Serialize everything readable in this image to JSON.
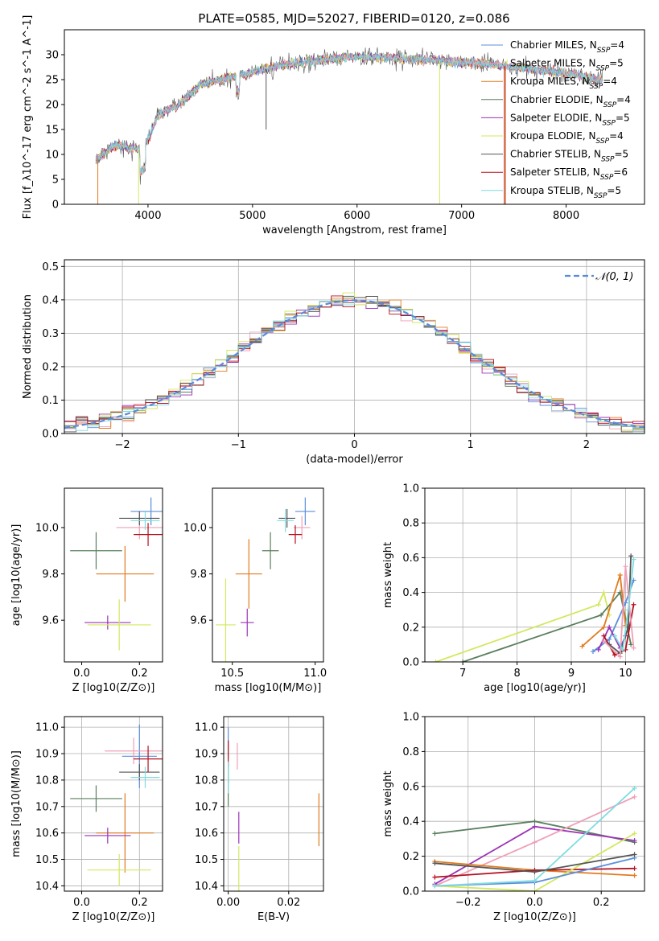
{
  "title": "PLATE=0585, MJD=52027, FIBERID=0120, z=0.086",
  "colors": {
    "Chabrier MILES": "#5b8fd9",
    "Salpeter MILES": "#ef9fb6",
    "Kroupa MILES": "#e07b1f",
    "Chabrier ELODIE": "#5a7f5e",
    "Salpeter ELODIE": "#9b33b6",
    "Kroupa ELODIE": "#d3e85f",
    "Chabrier STELIB": "#555555",
    "Salpeter STELIB": "#b4101f",
    "Kroupa STELIB": "#7fdce0"
  },
  "legend_labels": [
    "Chabrier MILES, N_SSP=4",
    "Salpeter MILES, N_SSP=5",
    "Kroupa MILES, N_SSP=4",
    "Chabrier ELODIE, N_SSP=4",
    "Salpeter ELODIE, N_SSP=5",
    "Kroupa ELODIE, N_SSP=4",
    "Chabrier STELIB, N_SSP=5",
    "Salpeter STELIB, N_SSP=6",
    "Kroupa STELIB, N_SSP=5"
  ],
  "chart_data": [
    {
      "type": "line",
      "title": "PLATE=0585, MJD=52027, FIBERID=0120, z=0.086",
      "xlabel": "wavelength [Angstrom, rest frame]",
      "ylabel": "Flux [f_λ10^-17 erg cm^-2 s^-1 A^-1]",
      "xlim": [
        3200,
        8750
      ],
      "ylim": [
        0,
        35
      ],
      "xticks": [
        4000,
        5000,
        6000,
        7000,
        8000
      ],
      "yticks": [
        0,
        5,
        10,
        15,
        20,
        25,
        30
      ],
      "spectrum_envelope": {
        "wavelength": [
          3500,
          3700,
          3900,
          4000,
          4100,
          4300,
          4500,
          4700,
          4900,
          5100,
          5300,
          5500,
          5700,
          5900,
          6100,
          6300,
          6500,
          6700,
          6900,
          7100,
          7300,
          7500,
          7700,
          7900,
          8100,
          8300
        ],
        "flux": [
          9,
          12,
          11,
          13,
          18,
          20,
          24,
          25,
          26,
          27,
          28,
          28.5,
          29,
          29.5,
          29.5,
          29.5,
          29,
          29,
          28.5,
          28.5,
          28,
          27.5,
          27,
          26.5,
          26,
          25
        ]
      },
      "grid": false,
      "legend_position": "upper right"
    },
    {
      "type": "histogram",
      "xlabel": "(data-model)/error",
      "ylabel": "Normed distribution",
      "xlim": [
        -2.5,
        2.5
      ],
      "ylim": [
        0,
        0.52
      ],
      "xticks": [
        -2,
        -1,
        0,
        1,
        2
      ],
      "yticks": [
        0.0,
        0.1,
        0.2,
        0.3,
        0.4,
        0.5
      ],
      "reference": "N(0,1)",
      "legend_label": "$\\mathcal{N}(0,1)$",
      "grid": true,
      "legend_position": "upper right"
    },
    {
      "type": "scatter",
      "xlabel": "Z [log10(Z/Z⊙)]",
      "ylabel": "age  [log10(age/yr)]",
      "xlim": [
        -0.06,
        0.28
      ],
      "ylim": [
        9.42,
        10.17
      ],
      "xticks": [
        0.0,
        0.2
      ],
      "yticks": [
        9.6,
        9.8,
        10.0
      ],
      "points": [
        {
          "model": "Chabrier MILES",
          "x": 0.24,
          "y": 10.07,
          "xerr": 0.07,
          "yerr": 0.06
        },
        {
          "model": "Salpeter MILES",
          "x": 0.2,
          "y": 10.0,
          "xerr": 0.08,
          "yerr": 0.05
        },
        {
          "model": "Kroupa MILES",
          "x": 0.15,
          "y": 9.8,
          "xerr": 0.1,
          "yerr": 0.12
        },
        {
          "model": "Chabrier ELODIE",
          "x": 0.05,
          "y": 9.9,
          "xerr": 0.09,
          "yerr": 0.08
        },
        {
          "model": "Salpeter ELODIE",
          "x": 0.09,
          "y": 9.59,
          "xerr": 0.08,
          "yerr": 0.03
        },
        {
          "model": "Kroupa ELODIE",
          "x": 0.13,
          "y": 9.58,
          "xerr": 0.11,
          "yerr": 0.11
        },
        {
          "model": "Chabrier STELIB",
          "x": 0.2,
          "y": 10.04,
          "xerr": 0.07,
          "yerr": 0.03
        },
        {
          "model": "Salpeter STELIB",
          "x": 0.23,
          "y": 9.97,
          "xerr": 0.05,
          "yerr": 0.05
        },
        {
          "model": "Kroupa STELIB",
          "x": 0.22,
          "y": 10.03,
          "xerr": 0.05,
          "yerr": 0.04
        }
      ]
    },
    {
      "type": "scatter",
      "xlabel": "mass [log10(M/M⊙)]",
      "ylabel": "",
      "xlim": [
        10.38,
        11.05
      ],
      "ylim": [
        9.42,
        10.17
      ],
      "xticks": [
        10.5,
        11.0
      ],
      "yticks": [
        9.6,
        9.8,
        10.0
      ],
      "points": [
        {
          "model": "Chabrier MILES",
          "x": 10.94,
          "y": 10.07,
          "xerr": 0.06,
          "yerr": 0.06
        },
        {
          "model": "Salpeter MILES",
          "x": 10.92,
          "y": 10.0,
          "xerr": 0.05,
          "yerr": 0.05
        },
        {
          "model": "Kroupa MILES",
          "x": 10.6,
          "y": 9.8,
          "xerr": 0.08,
          "yerr": 0.15
        },
        {
          "model": "Chabrier ELODIE",
          "x": 10.73,
          "y": 9.9,
          "xerr": 0.05,
          "yerr": 0.08
        },
        {
          "model": "Salpeter ELODIE",
          "x": 10.59,
          "y": 9.59,
          "xerr": 0.04,
          "yerr": 0.06
        },
        {
          "model": "Kroupa ELODIE",
          "x": 10.46,
          "y": 9.58,
          "xerr": 0.06,
          "yerr": 0.2
        },
        {
          "model": "Chabrier STELIB",
          "x": 10.83,
          "y": 10.04,
          "xerr": 0.05,
          "yerr": 0.04
        },
        {
          "model": "Salpeter STELIB",
          "x": 10.88,
          "y": 9.97,
          "xerr": 0.04,
          "yerr": 0.04
        },
        {
          "model": "Kroupa STELIB",
          "x": 10.82,
          "y": 10.03,
          "xerr": 0.05,
          "yerr": 0.05
        }
      ]
    },
    {
      "type": "line",
      "xlabel": "age  [log10(age/yr)]",
      "ylabel": "mass weight",
      "xlim": [
        6.3,
        10.35
      ],
      "ylim": [
        0,
        1.0
      ],
      "xticks": [
        7,
        8,
        9,
        10
      ],
      "yticks": [
        0.0,
        0.2,
        0.4,
        0.6,
        0.8,
        1.0
      ],
      "grid": true,
      "series": [
        {
          "model": "Kroupa ELODIE",
          "x": [
            6.5,
            9.5,
            9.6,
            9.7
          ],
          "y": [
            0.0,
            0.33,
            0.4,
            0.27
          ]
        },
        {
          "model": "Chabrier ELODIE",
          "x": [
            7.0,
            9.55,
            9.9,
            10.1
          ],
          "y": [
            0.0,
            0.27,
            0.4,
            0.1
          ]
        },
        {
          "model": "Kroupa MILES",
          "x": [
            9.2,
            9.6,
            9.9,
            10.0
          ],
          "y": [
            0.09,
            0.2,
            0.5,
            0.21
          ]
        },
        {
          "model": "Chabrier MILES",
          "x": [
            9.4,
            9.7,
            10.0,
            10.15
          ],
          "y": [
            0.06,
            0.13,
            0.34,
            0.47
          ]
        },
        {
          "model": "Salpeter ELODIE",
          "x": [
            9.5,
            9.7,
            9.9,
            10.0
          ],
          "y": [
            0.07,
            0.2,
            0.08,
            0.15
          ]
        },
        {
          "model": "Salpeter STELIB",
          "x": [
            9.6,
            9.8,
            10.0,
            10.15
          ],
          "y": [
            0.15,
            0.04,
            0.07,
            0.33
          ]
        },
        {
          "model": "Chabrier STELIB",
          "x": [
            9.7,
            9.9,
            10.05,
            10.1
          ],
          "y": [
            0.1,
            0.05,
            0.2,
            0.61
          ]
        },
        {
          "model": "Salpeter MILES",
          "x": [
            9.6,
            9.9,
            10.0,
            10.15
          ],
          "y": [
            0.12,
            0.03,
            0.55,
            0.08
          ]
        },
        {
          "model": "Kroupa STELIB",
          "x": [
            9.8,
            9.95,
            10.05,
            10.15
          ],
          "y": [
            0.15,
            0.07,
            0.3,
            0.59
          ]
        }
      ]
    },
    {
      "type": "scatter",
      "xlabel": "Z [log10(Z/Z⊙)]",
      "ylabel": "mass [log10(M/M⊙)]",
      "xlim": [
        -0.06,
        0.28
      ],
      "ylim": [
        10.38,
        11.04
      ],
      "xticks": [
        0.0,
        0.2
      ],
      "yticks": [
        10.4,
        10.5,
        10.6,
        10.7,
        10.8,
        10.9,
        11.0
      ],
      "grid": true,
      "points": [
        {
          "model": "Chabrier MILES",
          "x": 0.2,
          "y": 10.89,
          "xerr": 0.06,
          "yerr": 0.12
        },
        {
          "model": "Salpeter MILES",
          "x": 0.18,
          "y": 10.91,
          "xerr": 0.1,
          "yerr": 0.05
        },
        {
          "model": "Kroupa MILES",
          "x": 0.15,
          "y": 10.6,
          "xerr": 0.1,
          "yerr": 0.15
        },
        {
          "model": "Chabrier ELODIE",
          "x": 0.05,
          "y": 10.73,
          "xerr": 0.09,
          "yerr": 0.05
        },
        {
          "model": "Salpeter ELODIE",
          "x": 0.09,
          "y": 10.59,
          "xerr": 0.08,
          "yerr": 0.03
        },
        {
          "model": "Kroupa ELODIE",
          "x": 0.13,
          "y": 10.46,
          "xerr": 0.11,
          "yerr": 0.06
        },
        {
          "model": "Chabrier STELIB",
          "x": 0.2,
          "y": 10.83,
          "xerr": 0.07,
          "yerr": 0.03
        },
        {
          "model": "Salpeter STELIB",
          "x": 0.23,
          "y": 10.88,
          "xerr": 0.05,
          "yerr": 0.05
        },
        {
          "model": "Kroupa STELIB",
          "x": 0.22,
          "y": 10.81,
          "xerr": 0.05,
          "yerr": 0.04
        }
      ]
    },
    {
      "type": "scatter",
      "xlabel": "E(B-V)",
      "ylabel": "",
      "xlim": [
        -0.0015,
        0.0315
      ],
      "ylim": [
        10.38,
        11.04
      ],
      "xticks": [
        0.0,
        0.02
      ],
      "yticks": [
        10.4,
        10.5,
        10.6,
        10.7,
        10.8,
        10.9,
        11.0
      ],
      "grid": true,
      "points": [
        {
          "model": "Chabrier MILES",
          "x": 0.0,
          "y": 10.94,
          "yerr": 0.06
        },
        {
          "model": "Salpeter MILES",
          "x": 0.003,
          "y": 10.89,
          "yerr": 0.05
        },
        {
          "model": "Kroupa MILES",
          "x": 0.03,
          "y": 10.65,
          "yerr": 0.1
        },
        {
          "model": "Chabrier ELODIE",
          "x": 0.0,
          "y": 10.75,
          "yerr": 0.05
        },
        {
          "model": "Salpeter ELODIE",
          "x": 0.0035,
          "y": 10.62,
          "yerr": 0.06
        },
        {
          "model": "Kroupa ELODIE",
          "x": 0.0035,
          "y": 10.45,
          "yerr": 0.1
        },
        {
          "model": "Chabrier STELIB",
          "x": 0.0,
          "y": 10.83,
          "yerr": 0.04
        },
        {
          "model": "Salpeter STELIB",
          "x": 0.0,
          "y": 10.9,
          "yerr": 0.05
        },
        {
          "model": "Kroupa STELIB",
          "x": 0.0,
          "y": 10.81,
          "yerr": 0.06
        }
      ]
    },
    {
      "type": "line",
      "xlabel": "Z [log10(Z/Z⊙)]",
      "ylabel": "mass weight",
      "xlim": [
        -0.33,
        0.33
      ],
      "ylim": [
        0,
        1.0
      ],
      "xticks": [
        -0.2,
        0.0,
        0.2
      ],
      "yticks": [
        0.0,
        0.2,
        0.4,
        0.6,
        0.8,
        1.0
      ],
      "grid": true,
      "series": [
        {
          "model": "Chabrier ELODIE",
          "x": [
            -0.3,
            0.0,
            0.3
          ],
          "y": [
            0.33,
            0.4,
            0.28
          ]
        },
        {
          "model": "Salpeter ELODIE",
          "x": [
            -0.3,
            0.0,
            0.3
          ],
          "y": [
            0.04,
            0.37,
            0.29
          ]
        },
        {
          "model": "Salpeter MILES",
          "x": [
            -0.3,
            0.0,
            0.3
          ],
          "y": [
            0.03,
            0.28,
            0.54
          ]
        },
        {
          "model": "Kroupa MILES",
          "x": [
            -0.3,
            0.0,
            0.3
          ],
          "y": [
            0.17,
            0.12,
            0.09
          ]
        },
        {
          "model": "Salpeter STELIB",
          "x": [
            -0.3,
            0.0,
            0.3
          ],
          "y": [
            0.08,
            0.12,
            0.13
          ]
        },
        {
          "model": "Kroupa ELODIE",
          "x": [
            -0.3,
            0.0,
            0.3
          ],
          "y": [
            0.03,
            0.0,
            0.33
          ]
        },
        {
          "model": "Chabrier MILES",
          "x": [
            -0.3,
            0.0,
            0.3
          ],
          "y": [
            0.03,
            0.05,
            0.19
          ]
        },
        {
          "model": "Kroupa STELIB",
          "x": [
            -0.3,
            0.0,
            0.3
          ],
          "y": [
            0.03,
            0.06,
            0.59
          ]
        },
        {
          "model": "Chabrier STELIB",
          "x": [
            -0.3,
            0.0,
            0.3
          ],
          "y": [
            0.16,
            0.11,
            0.21
          ]
        }
      ]
    }
  ]
}
